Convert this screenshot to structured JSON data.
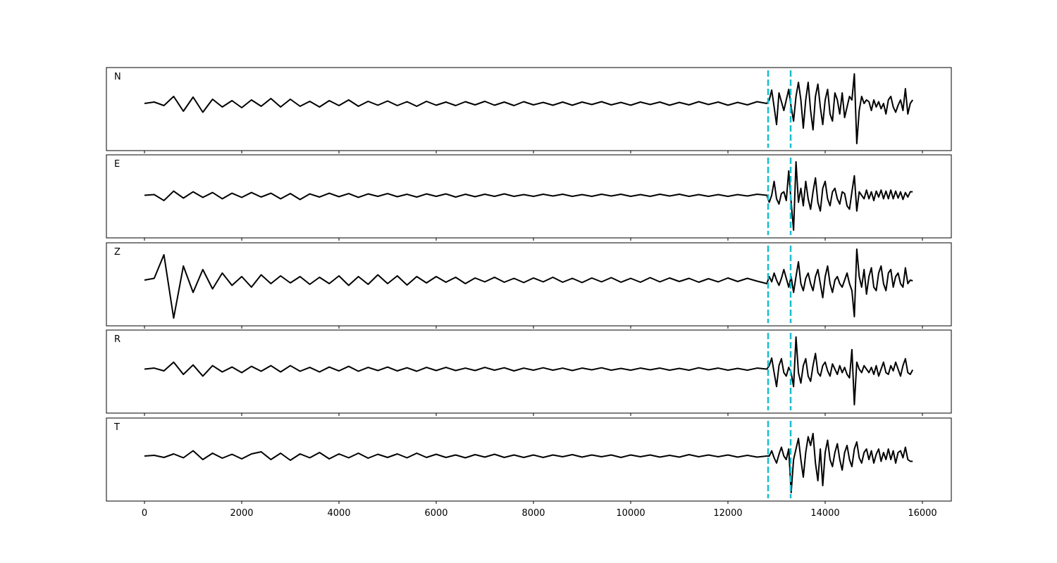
{
  "chart_data": {
    "type": "line",
    "line_color": "#000000",
    "xlim": [
      -783,
      16594
    ],
    "xticks": [
      0,
      2000,
      4000,
      6000,
      8000,
      10000,
      12000,
      14000,
      16000
    ],
    "markers": {
      "x": [
        12826,
        13290
      ],
      "color": "#17becf",
      "style": "dashed"
    },
    "x": [
      0,
      200,
      400,
      600,
      800,
      1000,
      1200,
      1400,
      1600,
      1800,
      2000,
      2200,
      2400,
      2600,
      2800,
      3000,
      3200,
      3400,
      3600,
      3800,
      4000,
      4200,
      4400,
      4600,
      4800,
      5000,
      5200,
      5400,
      5600,
      5800,
      6000,
      6200,
      6400,
      6600,
      6800,
      7000,
      7200,
      7400,
      7600,
      7800,
      8000,
      8200,
      8400,
      8600,
      8800,
      9000,
      9200,
      9400,
      9600,
      9800,
      10000,
      10200,
      10400,
      10600,
      10800,
      11000,
      11200,
      11400,
      11600,
      11800,
      12000,
      12200,
      12400,
      12600,
      12800,
      12850,
      12900,
      12950,
      13000,
      13050,
      13100,
      13150,
      13200,
      13250,
      13300,
      13350,
      13400,
      13450,
      13500,
      13550,
      13600,
      13650,
      13700,
      13750,
      13800,
      13850,
      13900,
      13950,
      14000,
      14050,
      14100,
      14150,
      14200,
      14250,
      14300,
      14350,
      14400,
      14450,
      14500,
      14550,
      14600,
      14650,
      14700,
      14750,
      14800,
      14850,
      14900,
      14950,
      15000,
      15050,
      15100,
      15150,
      15200,
      15250,
      15300,
      15350,
      15400,
      15450,
      15500,
      15550,
      15600,
      15650,
      15700,
      15750,
      15800
    ],
    "panels": [
      {
        "name": "N",
        "ylim": [
          -1.34,
          1.02
        ],
        "values": [
          0,
          0.04,
          -0.06,
          0.2,
          -0.22,
          0.18,
          -0.25,
          0.12,
          -0.1,
          0.08,
          -0.12,
          0.1,
          -0.08,
          0.14,
          -0.1,
          0.12,
          -0.08,
          0.06,
          -0.1,
          0.08,
          -0.06,
          0.1,
          -0.08,
          0.06,
          -0.05,
          0.07,
          -0.06,
          0.05,
          -0.08,
          0.06,
          -0.05,
          0.04,
          -0.06,
          0.05,
          -0.04,
          0.06,
          -0.05,
          0.04,
          -0.06,
          0.05,
          -0.04,
          0.03,
          -0.05,
          0.04,
          -0.05,
          0.04,
          -0.03,
          0.05,
          -0.04,
          0.03,
          -0.05,
          0.04,
          -0.03,
          0.04,
          -0.05,
          0.03,
          -0.04,
          0.05,
          -0.03,
          0.04,
          -0.05,
          0.03,
          -0.04,
          0.05,
          0.0,
          0.1,
          0.38,
          -0.1,
          -0.6,
          0.3,
          0.05,
          -0.2,
          0.1,
          0.4,
          -0.1,
          -0.5,
          0.2,
          0.6,
          0.1,
          -0.7,
          0.1,
          0.6,
          -0.2,
          -0.75,
          0.2,
          0.55,
          -0.1,
          -0.6,
          0.1,
          0.4,
          -0.3,
          -0.5,
          0.3,
          0.1,
          -0.3,
          0.3,
          -0.4,
          -0.1,
          0.2,
          0.1,
          0.84,
          -1.14,
          -0.2,
          0.2,
          0.0,
          0.1,
          0.05,
          -0.2,
          0.1,
          -0.1,
          0.05,
          -0.15,
          0.0,
          -0.3,
          0.1,
          0.2,
          -0.1,
          -0.25,
          -0.05,
          0.1,
          -0.2,
          0.42,
          -0.3,
          0.0,
          0.1
        ]
      },
      {
        "name": "E",
        "ylim": [
          -1.22,
          1.16
        ],
        "values": [
          0,
          0.02,
          -0.15,
          0.12,
          -0.08,
          0.1,
          -0.06,
          0.08,
          -0.1,
          0.06,
          -0.06,
          0.08,
          -0.05,
          0.06,
          -0.1,
          0.05,
          -0.12,
          0.04,
          -0.05,
          0.06,
          -0.04,
          0.05,
          -0.06,
          0.04,
          -0.03,
          0.05,
          -0.04,
          0.03,
          -0.05,
          0.04,
          -0.03,
          0.04,
          -0.05,
          0.03,
          -0.04,
          0.03,
          -0.03,
          0.04,
          -0.03,
          0.02,
          -0.03,
          0.03,
          -0.02,
          0.03,
          -0.03,
          0.02,
          -0.03,
          0.03,
          -0.02,
          0.03,
          -0.03,
          0.02,
          -0.03,
          0.03,
          -0.02,
          0.03,
          -0.03,
          0.02,
          -0.03,
          0.02,
          -0.03,
          0.02,
          -0.02,
          0.03,
          0.0,
          -0.2,
          0.0,
          0.4,
          -0.1,
          -0.25,
          0.05,
          0.1,
          -0.15,
          0.7,
          -0.2,
          -1.0,
          0.96,
          -0.2,
          0.2,
          -0.3,
          0.4,
          -0.1,
          -0.4,
          0.1,
          0.5,
          -0.2,
          -0.45,
          0.2,
          0.4,
          -0.1,
          -0.3,
          0.1,
          0.2,
          -0.1,
          -0.25,
          0.1,
          0.05,
          -0.3,
          -0.4,
          0.1,
          0.56,
          -0.45,
          0.1,
          0.0,
          -0.1,
          0.15,
          -0.1,
          0.1,
          -0.15,
          0.12,
          -0.05,
          0.15,
          -0.1,
          0.12,
          -0.1,
          0.15,
          -0.1,
          0.12,
          -0.08,
          0.1,
          -0.12,
          0.08,
          -0.05,
          0.1,
          0.1
        ]
      },
      {
        "name": "Z",
        "ylim": [
          -1.3,
          1.06
        ],
        "values": [
          0,
          0.05,
          0.72,
          -1.08,
          0.4,
          -0.35,
          0.3,
          -0.25,
          0.2,
          -0.15,
          0.1,
          -0.2,
          0.15,
          -0.1,
          0.12,
          -0.08,
          0.1,
          -0.12,
          0.08,
          -0.1,
          0.12,
          -0.15,
          0.1,
          -0.12,
          0.15,
          -0.1,
          0.12,
          -0.14,
          0.1,
          -0.08,
          0.1,
          -0.06,
          0.08,
          -0.1,
          0.06,
          -0.05,
          0.08,
          -0.06,
          0.05,
          -0.07,
          0.06,
          -0.05,
          0.08,
          -0.06,
          0.05,
          -0.07,
          0.06,
          -0.05,
          0.07,
          -0.06,
          0.05,
          -0.06,
          0.07,
          -0.05,
          0.06,
          -0.04,
          0.05,
          -0.06,
          0.04,
          -0.05,
          0.06,
          -0.04,
          0.05,
          -0.03,
          -0.1,
          0.1,
          -0.05,
          0.2,
          0.0,
          -0.15,
          0.05,
          0.3,
          0.05,
          -0.2,
          0.1,
          -0.35,
          0.1,
          0.52,
          -0.1,
          -0.3,
          0.05,
          0.2,
          -0.1,
          -0.3,
          0.1,
          0.3,
          -0.1,
          -0.5,
          0.1,
          0.4,
          -0.1,
          -0.35,
          0.0,
          0.1,
          -0.1,
          -0.2,
          0.0,
          0.2,
          -0.1,
          -0.3,
          -1.04,
          0.88,
          0.1,
          -0.2,
          0.3,
          -0.4,
          0.1,
          0.35,
          -0.2,
          -0.3,
          0.2,
          0.4,
          -0.1,
          -0.3,
          0.2,
          0.3,
          -0.2,
          0.1,
          0.2,
          -0.1,
          -0.2,
          0.35,
          -0.1,
          0.0,
          -0.02
        ]
      },
      {
        "name": "R",
        "ylim": [
          -1.26,
          1.12
        ],
        "values": [
          0,
          0.03,
          -0.05,
          0.2,
          -0.15,
          0.12,
          -0.2,
          0.1,
          -0.08,
          0.06,
          -0.1,
          0.08,
          -0.06,
          0.1,
          -0.08,
          0.1,
          -0.06,
          0.05,
          -0.08,
          0.06,
          -0.05,
          0.08,
          -0.06,
          0.05,
          -0.04,
          0.06,
          -0.05,
          0.04,
          -0.06,
          0.05,
          -0.04,
          0.05,
          -0.04,
          0.03,
          -0.04,
          0.05,
          -0.03,
          0.04,
          -0.05,
          0.03,
          -0.03,
          0.04,
          -0.03,
          0.03,
          -0.04,
          0.03,
          -0.02,
          0.04,
          -0.03,
          0.02,
          -0.03,
          0.03,
          -0.02,
          0.03,
          -0.03,
          0.02,
          -0.03,
          0.04,
          -0.02,
          0.03,
          -0.03,
          0.02,
          -0.03,
          0.03,
          0.0,
          0.1,
          0.32,
          -0.1,
          -0.5,
          0.1,
          0.3,
          -0.1,
          -0.2,
          0.05,
          -0.1,
          -0.5,
          0.92,
          -0.1,
          -0.4,
          0.1,
          0.3,
          -0.2,
          -0.35,
          0.1,
          0.45,
          -0.1,
          -0.2,
          0.1,
          0.2,
          -0.05,
          -0.2,
          0.15,
          0.0,
          -0.15,
          0.1,
          -0.1,
          0.05,
          -0.15,
          -0.25,
          0.56,
          -1.02,
          0.2,
          0.0,
          -0.1,
          0.1,
          0.0,
          -0.1,
          0.05,
          -0.15,
          0.1,
          -0.2,
          0.0,
          0.2,
          -0.1,
          -0.15,
          0.1,
          -0.05,
          0.2,
          0.0,
          -0.2,
          0.1,
          0.3,
          -0.1,
          -0.15,
          -0.02
        ]
      },
      {
        "name": "T",
        "ylim": [
          -1.28,
          1.08
        ],
        "values": [
          0,
          0.02,
          -0.04,
          0.06,
          -0.05,
          0.15,
          -0.1,
          0.08,
          -0.06,
          0.05,
          -0.08,
          0.06,
          0.12,
          -0.1,
          0.08,
          -0.12,
          0.06,
          -0.05,
          0.1,
          -0.08,
          0.06,
          -0.05,
          0.08,
          -0.06,
          0.05,
          -0.04,
          0.06,
          -0.05,
          0.08,
          -0.04,
          0.05,
          -0.04,
          0.03,
          -0.05,
          0.04,
          -0.03,
          0.05,
          -0.04,
          0.03,
          -0.04,
          0.03,
          -0.04,
          0.03,
          -0.02,
          0.04,
          -0.03,
          0.03,
          -0.02,
          0.03,
          -0.04,
          0.03,
          -0.02,
          0.03,
          -0.03,
          0.02,
          -0.03,
          0.04,
          -0.02,
          0.03,
          -0.02,
          0.03,
          -0.03,
          0.02,
          -0.03,
          0.0,
          0.0,
          0.15,
          -0.05,
          -0.2,
          0.05,
          0.25,
          0.0,
          -0.1,
          0.2,
          -1.04,
          -0.1,
          0.2,
          0.5,
          -0.1,
          -0.6,
          0.1,
          0.55,
          0.3,
          0.64,
          -0.2,
          -0.7,
          0.2,
          -0.84,
          0.1,
          0.45,
          -0.1,
          -0.3,
          0.1,
          0.35,
          -0.1,
          -0.4,
          0.1,
          0.3,
          -0.1,
          -0.3,
          0.2,
          0.4,
          -0.05,
          -0.2,
          0.1,
          0.2,
          -0.1,
          0.15,
          -0.2,
          0.05,
          0.2,
          -0.15,
          0.1,
          -0.1,
          0.2,
          -0.1,
          0.15,
          -0.2,
          0.1,
          0.15,
          -0.05,
          0.25,
          -0.1,
          -0.15,
          -0.15
        ]
      }
    ]
  }
}
